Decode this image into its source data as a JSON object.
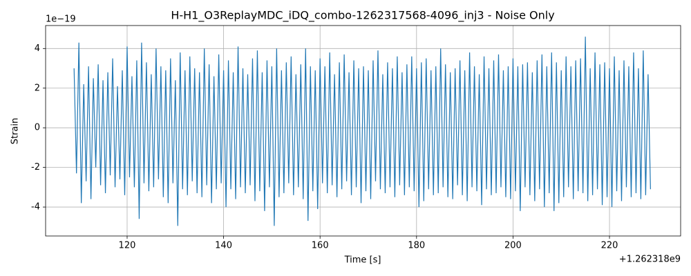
{
  "chart_data": {
    "type": "line",
    "title": "H-H1_O3ReplayMDC_iDQ_combo-1262317568-4096_inj3 - Noise Only",
    "x_label": "Time [s]",
    "y_label": "Strain",
    "x_offset_label": "+1.262318e9",
    "y_offset_label": "1e−19",
    "color": "#1f77b4",
    "grid": true,
    "xlim": [
      103.1,
      234.75
    ],
    "ylim": [
      -5.46,
      5.16
    ],
    "xticks": [
      120,
      140,
      160,
      180,
      200,
      220
    ],
    "yticks": [
      -4,
      -2,
      0,
      2,
      4
    ],
    "x": [
      109,
      109.5,
      110,
      110.5,
      111,
      111.5,
      112,
      112.5,
      113,
      113.5,
      114,
      114.5,
      115,
      115.5,
      116,
      116.5,
      117,
      117.5,
      118,
      118.5,
      119,
      119.5,
      120,
      120.5,
      121,
      121.5,
      122,
      122.5,
      123,
      123.5,
      124,
      124.5,
      125,
      125.5,
      126,
      126.5,
      127,
      127.5,
      128,
      128.5,
      129,
      129.5,
      130,
      130.5,
      131,
      131.5,
      132,
      132.5,
      133,
      133.5,
      134,
      134.5,
      135,
      135.5,
      136,
      136.5,
      137,
      137.5,
      138,
      138.5,
      139,
      139.5,
      140,
      140.5,
      141,
      141.5,
      142,
      142.5,
      143,
      143.5,
      144,
      144.5,
      145,
      145.5,
      146,
      146.5,
      147,
      147.5,
      148,
      148.5,
      149,
      149.5,
      150,
      150.5,
      151,
      151.5,
      152,
      152.5,
      153,
      153.5,
      154,
      154.5,
      155,
      155.5,
      156,
      156.5,
      157,
      157.5,
      158,
      158.5,
      159,
      159.5,
      160,
      160.5,
      161,
      161.5,
      162,
      162.5,
      163,
      163.5,
      164,
      164.5,
      165,
      165.5,
      166,
      166.5,
      167,
      167.5,
      168,
      168.5,
      169,
      169.5,
      170,
      170.5,
      171,
      171.5,
      172,
      172.5,
      173,
      173.5,
      174,
      174.5,
      175,
      175.5,
      176,
      176.5,
      177,
      177.5,
      178,
      178.5,
      179,
      179.5,
      180,
      180.5,
      181,
      181.5,
      182,
      182.5,
      183,
      183.5,
      184,
      184.5,
      185,
      185.5,
      186,
      186.5,
      187,
      187.5,
      188,
      188.5,
      189,
      189.5,
      190,
      190.5,
      191,
      191.5,
      192,
      192.5,
      193,
      193.5,
      194,
      194.5,
      195,
      195.5,
      196,
      196.5,
      197,
      197.5,
      198,
      198.5,
      199,
      199.5,
      200,
      200.5,
      201,
      201.5,
      202,
      202.5,
      203,
      203.5,
      204,
      204.5,
      205,
      205.5,
      206,
      206.5,
      207,
      207.5,
      208,
      208.5,
      209,
      209.5,
      210,
      210.5,
      211,
      211.5,
      212,
      212.5,
      213,
      213.5,
      214,
      214.5,
      215,
      215.5,
      216,
      216.5,
      217,
      217.5,
      218,
      218.5,
      219,
      219.5,
      220,
      220.5,
      221,
      221.5,
      222,
      222.5,
      223,
      223.5,
      224,
      224.5,
      225,
      225.5,
      226,
      226.5,
      227,
      227.5,
      228,
      228.5
    ],
    "values": [
      3.0,
      -2.3,
      4.3,
      -3.8,
      2.2,
      -2.7,
      3.1,
      -3.6,
      2.5,
      -2.0,
      3.2,
      -2.9,
      2.4,
      -3.3,
      2.8,
      -2.4,
      3.5,
      -3.0,
      2.1,
      -2.6,
      2.9,
      -3.4,
      4.1,
      -2.5,
      2.6,
      -3.0,
      3.4,
      -4.6,
      4.3,
      -2.8,
      3.3,
      -3.2,
      2.7,
      -3.0,
      4.0,
      -2.6,
      3.1,
      -3.5,
      2.9,
      -3.8,
      3.5,
      -2.8,
      2.4,
      -4.95,
      3.8,
      -3.1,
      2.9,
      -3.4,
      3.6,
      -2.7,
      3.0,
      -3.3,
      2.8,
      -3.5,
      4.0,
      -2.9,
      3.2,
      -3.8,
      2.6,
      -3.1,
      3.7,
      -2.8,
      2.9,
      -4.0,
      3.4,
      -3.1,
      2.8,
      -3.6,
      4.1,
      -3.0,
      3.0,
      -3.3,
      2.7,
      -2.9,
      3.5,
      -3.7,
      3.9,
      -3.2,
      2.8,
      -4.2,
      3.4,
      -3.0,
      3.1,
      -4.95,
      4.0,
      -3.5,
      2.9,
      -3.3,
      3.3,
      -2.8,
      3.6,
      -3.4,
      2.7,
      -3.0,
      3.2,
      -3.6,
      4.0,
      -4.7,
      3.1,
      -3.2,
      2.9,
      -4.1,
      3.5,
      -2.8,
      3.1,
      -3.3,
      3.8,
      -2.9,
      2.7,
      -3.5,
      3.3,
      -3.1,
      3.7,
      -2.7,
      2.8,
      -3.4,
      3.4,
      -3.0,
      3.0,
      -3.8,
      3.1,
      -3.2,
      2.9,
      -3.6,
      3.4,
      -2.7,
      3.9,
      -3.1,
      2.7,
      -3.3,
      3.3,
      -3.0,
      3.0,
      -3.5,
      3.6,
      -2.9,
      2.8,
      -3.4,
      3.2,
      -3.0,
      3.6,
      -3.2,
      3.0,
      -4.0,
      3.3,
      -3.7,
      3.5,
      -3.1,
      2.9,
      -3.4,
      3.1,
      -3.3,
      4.0,
      -3.0,
      3.2,
      -3.5,
      2.8,
      -3.6,
      3.0,
      -2.9,
      3.4,
      -3.4,
      2.9,
      -3.7,
      3.8,
      -3.0,
      3.1,
      -3.2,
      2.7,
      -3.9,
      3.6,
      -3.1,
      3.0,
      -3.4,
      3.4,
      -3.3,
      3.7,
      -3.0,
      2.9,
      -3.5,
      3.1,
      -3.6,
      3.5,
      -3.2,
      3.1,
      -4.2,
      3.2,
      -3.0,
      3.3,
      -3.4,
      2.8,
      -3.7,
      3.4,
      -3.1,
      3.7,
      -4.0,
      3.1,
      -3.3,
      3.8,
      -4.2,
      3.3,
      -3.8,
      2.9,
      -3.5,
      3.6,
      -3.0,
      3.1,
      -3.6,
      3.4,
      -3.2,
      3.5,
      -3.3,
      4.6,
      -3.7,
      3.0,
      -3.4,
      3.8,
      -3.1,
      3.2,
      -3.9,
      3.3,
      -3.5,
      3.0,
      -4.0,
      3.6,
      -3.2,
      2.9,
      -3.7,
      3.4,
      -3.0,
      3.1,
      -3.5,
      3.8,
      -3.3,
      3.0,
      -3.6,
      3.9,
      -3.4,
      2.7,
      -3.1
    ]
  }
}
